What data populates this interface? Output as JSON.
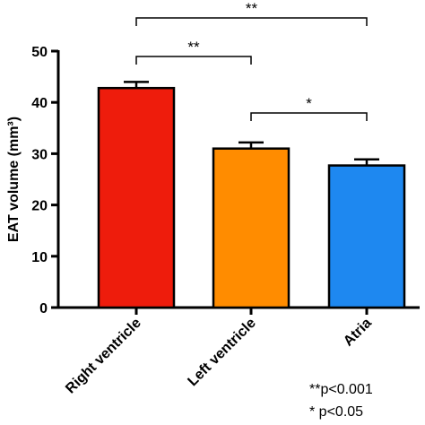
{
  "chart_data": {
    "type": "bar",
    "title": "",
    "xlabel": "",
    "ylabel": "EAT volume (mm³)",
    "ylim": [
      0,
      50
    ],
    "yticks": [
      0,
      10,
      20,
      30,
      40,
      50
    ],
    "grid": false,
    "categories": [
      "Right ventricle",
      "Left ventricle",
      "Atria"
    ],
    "values": [
      42.8,
      31.0,
      27.7
    ],
    "errors": [
      1.2,
      1.2,
      1.2
    ],
    "colors": [
      "#ee1c0c",
      "#ff8c00",
      "#1e88f0"
    ],
    "significance": [
      {
        "from": 0,
        "to": 2,
        "label": "**"
      },
      {
        "from": 0,
        "to": 1,
        "label": "**"
      },
      {
        "from": 1,
        "to": 2,
        "label": "*"
      }
    ]
  },
  "footnotes": [
    "**p<0.001",
    "* p<0.05"
  ]
}
